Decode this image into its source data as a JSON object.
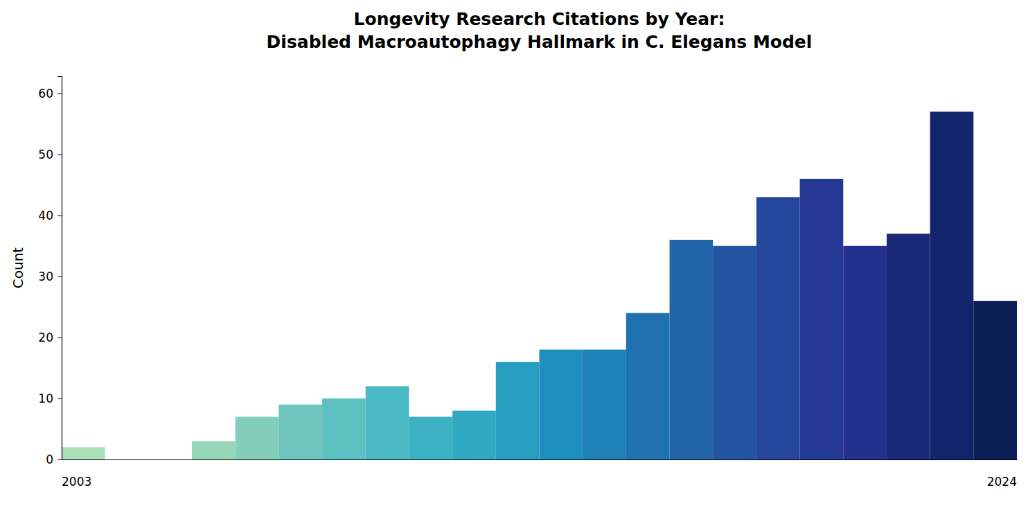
{
  "chart_data": {
    "type": "bar",
    "title": "Longevity Research Citations by Year:\nDisabled Macroautophagy Hallmark in C. Elegans Model",
    "y_label": "Count",
    "categories": [
      "2003",
      null,
      null,
      null,
      null,
      null,
      null,
      null,
      null,
      null,
      null,
      null,
      null,
      null,
      null,
      null,
      null,
      null,
      null,
      null,
      null,
      "2024"
    ],
    "values": [
      2,
      0,
      0,
      3,
      7,
      9,
      10,
      12,
      7,
      8,
      16,
      18,
      18,
      24,
      36,
      35,
      43,
      46,
      35,
      37,
      57,
      26
    ],
    "colors": [
      "#addfb7",
      "#a3dbb8",
      "#9cd8b8",
      "#98d6ba",
      "#82cebb",
      "#6dc5bd",
      "#5cbfc0",
      "#4bb9c3",
      "#3cb1c3",
      "#31a9c3",
      "#289dc2",
      "#1f8fc0",
      "#1f80b8",
      "#2071b0",
      "#2264aa",
      "#2355a3",
      "#24479c",
      "#253994",
      "#23308c",
      "#1a2a79",
      "#12246b",
      "#0c1f56"
    ],
    "ylim": [
      0,
      62.8
    ],
    "yticks": [
      0,
      10,
      20,
      30,
      40,
      50,
      60
    ],
    "grid": false
  }
}
